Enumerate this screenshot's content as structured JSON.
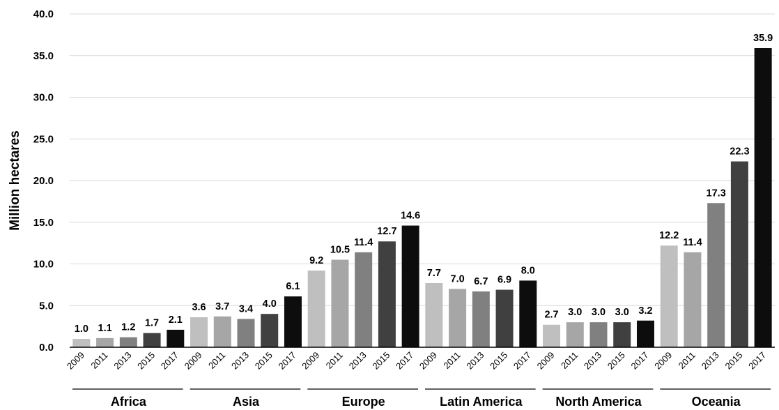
{
  "chart_data": {
    "type": "bar",
    "title": "",
    "xlabel": "",
    "ylabel": "Million hectares",
    "ylim": [
      0,
      40
    ],
    "ytick_step": 5,
    "ytick_labels": [
      "0.0",
      "5.0",
      "10.0",
      "15.0",
      "20.0",
      "25.0",
      "30.0",
      "35.0",
      "40.0"
    ],
    "grid": true,
    "legend": "none",
    "years": [
      "2009",
      "2011",
      "2013",
      "2015",
      "2017"
    ],
    "year_colors": [
      "#bfbfbf",
      "#a6a6a6",
      "#808080",
      "#404040",
      "#0d0d0d"
    ],
    "groups": [
      {
        "name": "Africa",
        "values": [
          1.0,
          1.1,
          1.2,
          1.7,
          2.1
        ]
      },
      {
        "name": "Asia",
        "values": [
          3.6,
          3.7,
          3.4,
          4.0,
          6.1
        ]
      },
      {
        "name": "Europe",
        "values": [
          9.2,
          10.5,
          11.4,
          12.7,
          14.6
        ]
      },
      {
        "name": "Latin America",
        "values": [
          7.7,
          7.0,
          6.7,
          6.9,
          8.0
        ]
      },
      {
        "name": "North America",
        "values": [
          2.7,
          3.0,
          3.0,
          3.0,
          3.2
        ]
      },
      {
        "name": "Oceania",
        "values": [
          12.2,
          11.4,
          17.3,
          22.3,
          35.9
        ]
      }
    ]
  }
}
